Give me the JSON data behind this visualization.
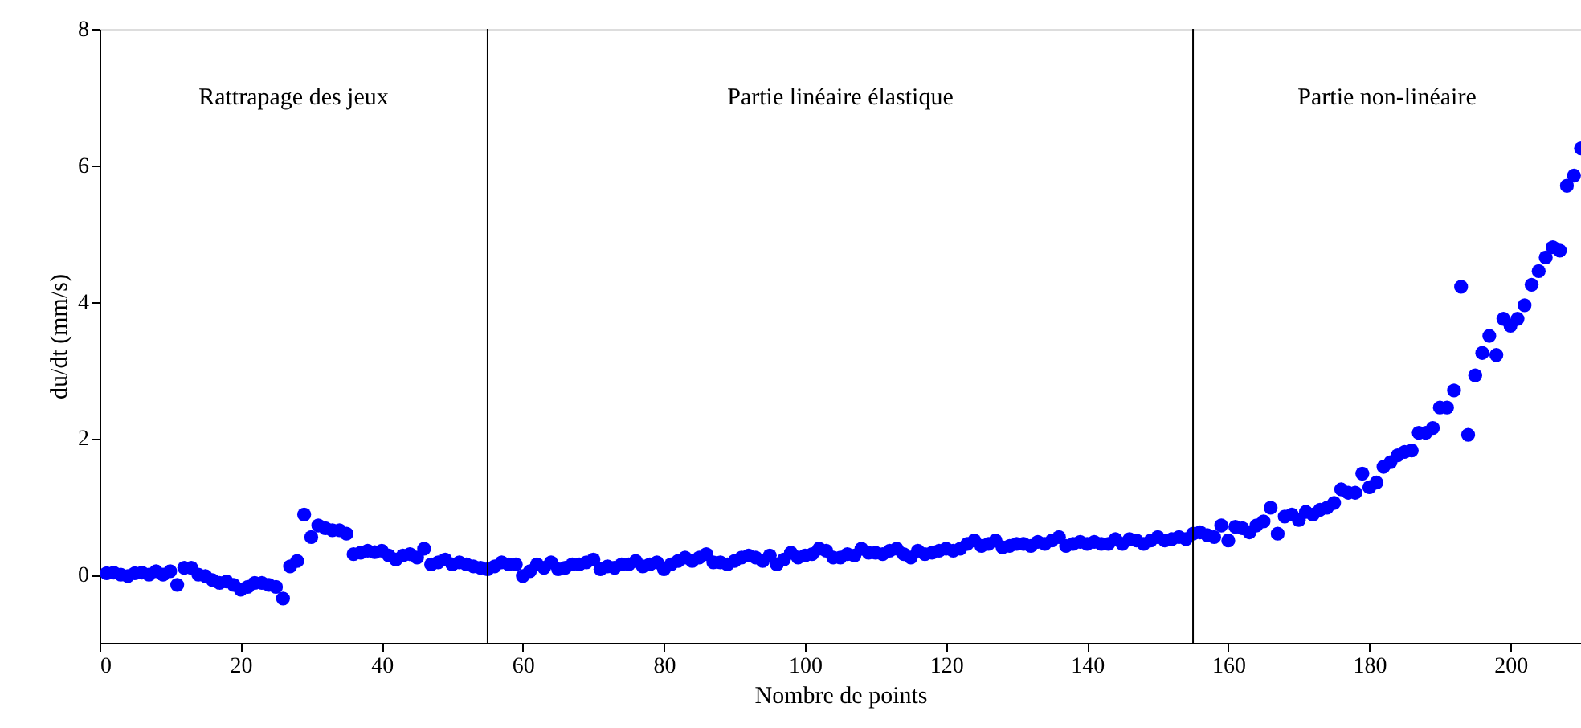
{
  "chart_data": {
    "type": "scatter",
    "xlabel": "Nombre de points",
    "ylabel": "du/dt (mm/s)",
    "xlim": [
      0,
      210
    ],
    "ylim": [
      -1,
      8
    ],
    "xticks": [
      0,
      20,
      40,
      60,
      80,
      100,
      120,
      140,
      160,
      180,
      200
    ],
    "yticks": [
      0,
      2,
      4,
      6,
      8
    ],
    "grid": false,
    "marker": "circle",
    "x": [
      1,
      2,
      3,
      4,
      5,
      6,
      7,
      8,
      9,
      10,
      11,
      12,
      13,
      14,
      15,
      16,
      17,
      18,
      19,
      20,
      21,
      22,
      23,
      24,
      25,
      26,
      27,
      28,
      29,
      30,
      31,
      32,
      33,
      34,
      35,
      36,
      37,
      38,
      39,
      40,
      41,
      42,
      43,
      44,
      45,
      46,
      47,
      48,
      49,
      50,
      51,
      52,
      53,
      54,
      55,
      56,
      57,
      58,
      59,
      60,
      61,
      62,
      63,
      64,
      65,
      66,
      67,
      68,
      69,
      70,
      71,
      72,
      73,
      74,
      75,
      76,
      77,
      78,
      79,
      80,
      81,
      82,
      83,
      84,
      85,
      86,
      87,
      88,
      89,
      90,
      91,
      92,
      93,
      94,
      95,
      96,
      97,
      98,
      99,
      100,
      101,
      102,
      103,
      104,
      105,
      106,
      107,
      108,
      109,
      110,
      111,
      112,
      113,
      114,
      115,
      116,
      117,
      118,
      119,
      120,
      121,
      122,
      123,
      124,
      125,
      126,
      127,
      128,
      129,
      130,
      131,
      132,
      133,
      134,
      135,
      136,
      137,
      138,
      139,
      140,
      141,
      142,
      143,
      144,
      145,
      146,
      147,
      148,
      149,
      150,
      151,
      152,
      153,
      154,
      155,
      156,
      157,
      158,
      159,
      160,
      161,
      162,
      163,
      164,
      165,
      166,
      167,
      168,
      169,
      170,
      171,
      172,
      173,
      174,
      175,
      176,
      177,
      178,
      179,
      180,
      181,
      182,
      183,
      184,
      185,
      186,
      187,
      188,
      189,
      190,
      191,
      192,
      193,
      194,
      195,
      196,
      197,
      198,
      199,
      200,
      201,
      202,
      203,
      204,
      205,
      206,
      207,
      208,
      209,
      210
    ],
    "series": [
      {
        "color": "#0000ff",
        "values": [
          0.02,
          0.03,
          0.0,
          -0.02,
          0.02,
          0.03,
          0.0,
          0.05,
          0.0,
          0.05,
          -0.15,
          0.1,
          0.1,
          0.0,
          -0.02,
          -0.08,
          -0.12,
          -0.1,
          -0.15,
          -0.22,
          -0.18,
          -0.12,
          -0.12,
          -0.15,
          -0.18,
          -0.35,
          0.12,
          0.2,
          0.88,
          0.55,
          0.72,
          0.68,
          0.65,
          0.65,
          0.6,
          0.3,
          0.32,
          0.35,
          0.33,
          0.35,
          0.28,
          0.22,
          0.28,
          0.3,
          0.25,
          0.38,
          0.15,
          0.18,
          0.22,
          0.15,
          0.18,
          0.15,
          0.12,
          0.1,
          0.08,
          0.12,
          0.18,
          0.15,
          0.15,
          -0.02,
          0.05,
          0.15,
          0.1,
          0.18,
          0.08,
          0.1,
          0.15,
          0.15,
          0.18,
          0.22,
          0.08,
          0.12,
          0.1,
          0.15,
          0.15,
          0.2,
          0.12,
          0.15,
          0.18,
          0.08,
          0.15,
          0.2,
          0.25,
          0.2,
          0.25,
          0.3,
          0.18,
          0.18,
          0.15,
          0.2,
          0.25,
          0.28,
          0.25,
          0.2,
          0.28,
          0.15,
          0.22,
          0.32,
          0.25,
          0.28,
          0.3,
          0.38,
          0.35,
          0.25,
          0.25,
          0.3,
          0.28,
          0.38,
          0.32,
          0.32,
          0.3,
          0.35,
          0.38,
          0.3,
          0.25,
          0.35,
          0.3,
          0.32,
          0.35,
          0.38,
          0.35,
          0.38,
          0.45,
          0.5,
          0.42,
          0.45,
          0.5,
          0.4,
          0.42,
          0.45,
          0.45,
          0.42,
          0.48,
          0.45,
          0.5,
          0.55,
          0.42,
          0.45,
          0.48,
          0.45,
          0.48,
          0.45,
          0.45,
          0.52,
          0.45,
          0.52,
          0.5,
          0.45,
          0.5,
          0.55,
          0.5,
          0.52,
          0.55,
          0.52,
          0.6,
          0.62,
          0.58,
          0.55,
          0.72,
          0.5,
          0.7,
          0.68,
          0.62,
          0.72,
          0.78,
          0.98,
          0.6,
          0.85,
          0.88,
          0.8,
          0.92,
          0.88,
          0.95,
          0.98,
          1.05,
          1.25,
          1.2,
          1.2,
          1.48,
          1.28,
          1.35,
          1.58,
          1.65,
          1.75,
          1.8,
          1.82,
          2.08,
          2.08,
          2.15,
          2.45,
          2.45,
          2.7,
          4.22,
          2.05,
          2.92,
          3.25,
          3.5,
          3.22,
          3.75,
          3.65,
          3.75,
          3.95,
          4.25,
          4.45,
          4.65,
          4.8,
          4.75,
          5.7,
          5.85,
          6.25
        ]
      }
    ],
    "ref_lines": [
      {
        "axis": "x",
        "value": 55,
        "color": "#000000"
      },
      {
        "axis": "x",
        "value": 155,
        "color": "#000000"
      }
    ],
    "annotations": [
      "Rattrapage des jeux",
      "Partie linéaire élastique",
      "Partie non-linéaire"
    ]
  }
}
